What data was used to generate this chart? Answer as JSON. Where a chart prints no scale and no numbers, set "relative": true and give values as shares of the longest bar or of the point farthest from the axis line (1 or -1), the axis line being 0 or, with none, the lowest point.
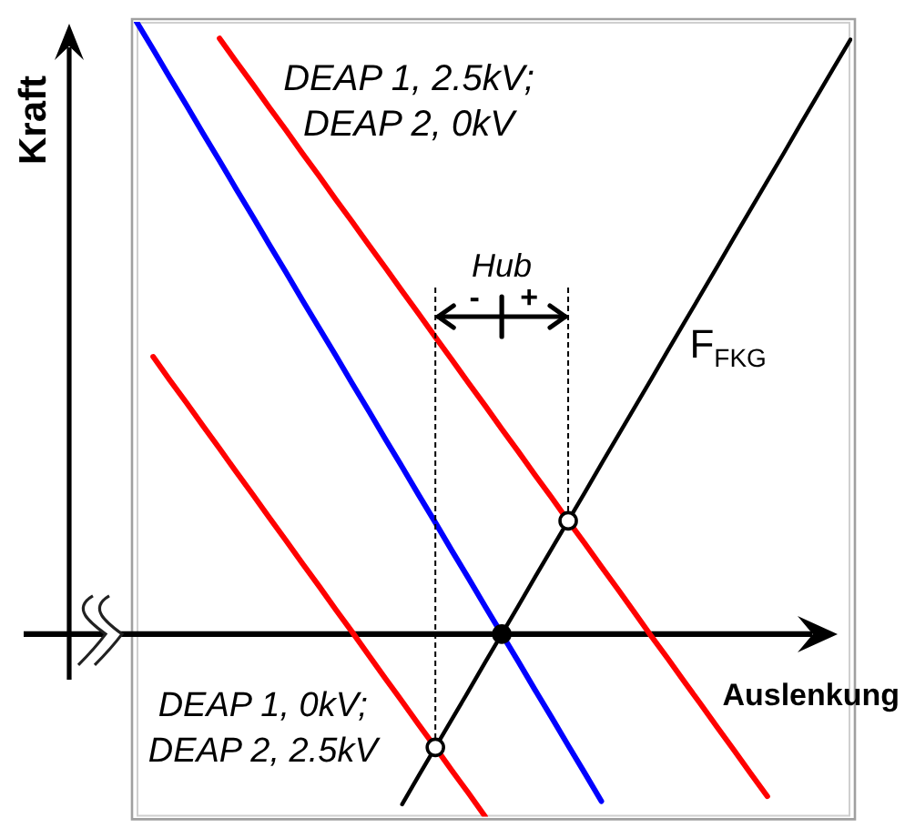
{
  "chart_data": {
    "type": "line",
    "xlabel": "Auslenkung",
    "ylabel": "Kraft",
    "annotations": [
      "Hub",
      "-",
      "+"
    ],
    "categories": [
      null,
      null,
      null,
      null,
      null,
      null,
      null,
      null,
      null,
      null,
      null,
      null,
      null,
      null,
      null,
      null,
      null,
      null,
      null,
      null,
      null,
      null,
      null,
      null,
      null,
      null,
      null,
      null,
      null,
      null,
      null,
      null,
      null,
      null,
      null,
      null,
      null,
      null,
      null,
      null,
      null,
      null,
      null,
      null
    ],
    "series": [
      {
        "color": "#0000ff",
        "values": [
          1,
          0.955,
          0.909,
          0.864,
          0.818,
          0.773,
          0.727,
          0.682,
          0.636,
          0.591,
          0.545,
          0.5,
          0.455,
          0.409,
          0.364,
          0.318,
          0.273,
          0.227,
          0.182,
          0.136,
          0.091,
          0.045,
          0,
          -0.045,
          -0.091,
          -0.136,
          -0.182,
          -0.227,
          -0.273,
          null,
          null,
          null,
          null,
          null,
          null,
          null,
          null,
          null,
          null,
          null,
          null,
          null,
          null,
          null
        ]
      },
      {
        "name": "DEAP 1, 2.5kV; DEAP 2, 0kV",
        "color": "#ff0000",
        "values": [
          null,
          null,
          null,
          null,
          null,
          0.973,
          0.935,
          0.898,
          0.86,
          0.823,
          0.785,
          0.748,
          0.71,
          0.673,
          0.635,
          0.598,
          0.56,
          0.523,
          0.485,
          0.448,
          0.41,
          0.373,
          0.335,
          0.298,
          0.26,
          0.223,
          0.185,
          0.148,
          0.11,
          0.073,
          0.035,
          -0.003,
          -0.04,
          -0.078,
          -0.115,
          -0.153,
          -0.19,
          -0.228,
          -0.265,
          null,
          null,
          null,
          null,
          null
        ]
      },
      {
        "name": "DEAP 1, 0kV; DEAP 2, 2.5kV",
        "color": "#ff0000",
        "values": [
          null,
          0.453,
          0.415,
          0.378,
          0.34,
          0.303,
          0.265,
          0.228,
          0.19,
          0.153,
          0.115,
          0.078,
          0.04,
          0.003,
          -0.035,
          -0.073,
          -0.11,
          -0.148,
          -0.185,
          -0.223,
          -0.26,
          -0.298,
          null,
          null,
          null,
          null,
          null,
          null,
          null,
          null,
          null,
          null,
          null,
          null,
          null,
          null,
          null,
          null,
          null,
          null,
          null,
          null,
          null,
          null
        ]
      },
      {
        "name": "F$_{FKG}$",
        "color": "#000000",
        "values": [
          null,
          null,
          null,
          null,
          null,
          null,
          null,
          null,
          null,
          null,
          null,
          null,
          null,
          null,
          null,
          null,
          -0.278,
          -0.231,
          -0.185,
          -0.139,
          -0.093,
          -0.046,
          0,
          0.046,
          0.093,
          0.139,
          0.185,
          0.231,
          0.278,
          0.324,
          0.37,
          0.416,
          0.463,
          0.509,
          0.555,
          0.601,
          0.648,
          0.694,
          0.74,
          0.786,
          0.833,
          0.879,
          0.925,
          0.971
        ]
      },
      {
        "marker": "circle",
        "color": "#000000",
        "colors": [
          null,
          null,
          null,
          null,
          null,
          null,
          null,
          null,
          null,
          null,
          null,
          null,
          null,
          null,
          null,
          null,
          null,
          null,
          "#ffffff",
          null,
          null,
          null,
          "#000000",
          null,
          null,
          null,
          "#ffffff",
          null,
          null,
          null,
          null,
          null,
          null,
          null,
          null,
          null,
          null,
          null,
          null,
          null,
          null,
          null,
          null,
          null
        ],
        "values": [
          null,
          null,
          null,
          null,
          null,
          null,
          null,
          null,
          null,
          null,
          null,
          null,
          null,
          null,
          null,
          null,
          null,
          null,
          -0.185,
          null,
          null,
          null,
          0,
          null,
          null,
          null,
          0.185,
          null,
          null,
          null,
          null,
          null,
          null,
          null,
          null,
          null,
          null,
          null,
          null,
          null,
          null,
          null,
          null,
          null
        ]
      }
    ],
    "relative": true,
    "marker": "none",
    "legend": false,
    "grid": false,
    "tick_labels": false
  }
}
